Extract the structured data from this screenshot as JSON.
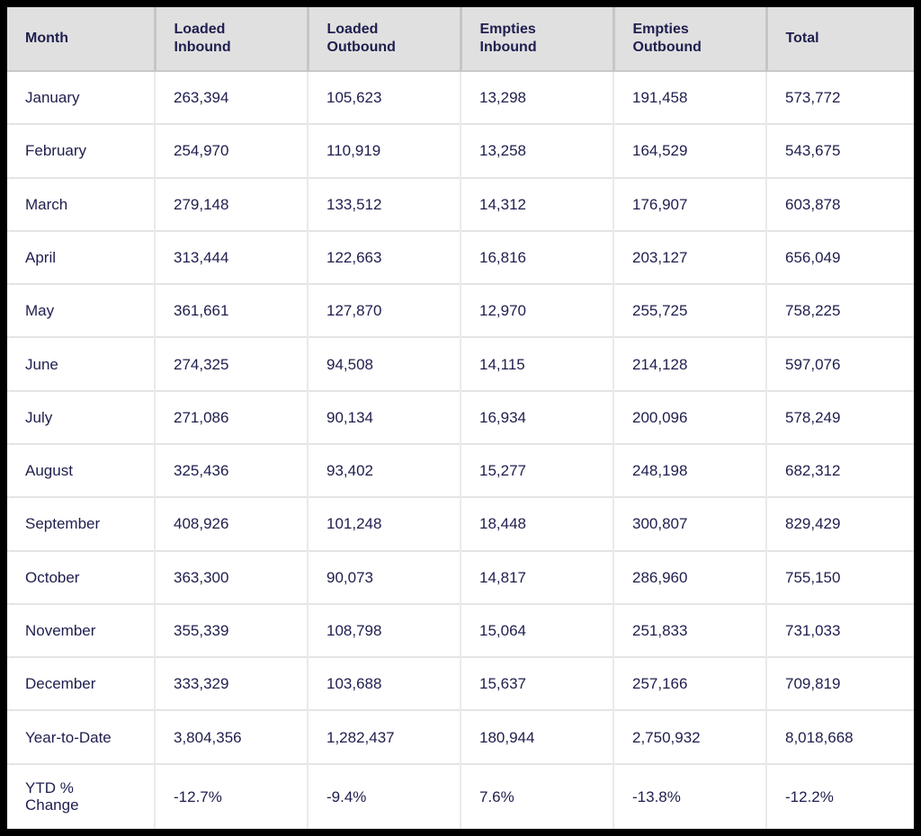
{
  "colors": {
    "frame": "#000000",
    "header_background": "#e0e0e0",
    "text_navy": "#1e1e4e",
    "body_grid": "#e4e4e4",
    "header_grid": "#c6c6c6",
    "cell_background": "#ffffff"
  },
  "chart_data": {
    "type": "table",
    "columns": [
      "Month",
      "Loaded Inbound",
      "Loaded Outbound",
      "Empties Inbound",
      "Empties Outbound",
      "Total"
    ],
    "rows": [
      [
        "January",
        "263,394",
        "105,623",
        "13,298",
        "191,458",
        "573,772"
      ],
      [
        "February",
        "254,970",
        "110,919",
        "13,258",
        "164,529",
        "543,675"
      ],
      [
        "March",
        "279,148",
        "133,512",
        "14,312",
        "176,907",
        "603,878"
      ],
      [
        "April",
        "313,444",
        "122,663",
        "16,816",
        "203,127",
        "656,049"
      ],
      [
        "May",
        "361,661",
        "127,870",
        "12,970",
        "255,725",
        "758,225"
      ],
      [
        "June",
        "274,325",
        "94,508",
        "14,115",
        "214,128",
        "597,076"
      ],
      [
        "July",
        "271,086",
        "90,134",
        "16,934",
        "200,096",
        "578,249"
      ],
      [
        "August",
        "325,436",
        "93,402",
        "15,277",
        "248,198",
        "682,312"
      ],
      [
        "September",
        "408,926",
        "101,248",
        "18,448",
        "300,807",
        "829,429"
      ],
      [
        "October",
        "363,300",
        "90,073",
        "14,817",
        "286,960",
        "755,150"
      ],
      [
        "November",
        "355,339",
        "108,798",
        "15,064",
        "251,833",
        "731,033"
      ],
      [
        "December",
        "333,329",
        "103,688",
        "15,637",
        "257,166",
        "709,819"
      ],
      [
        "Year-to-Date",
        "3,804,356",
        "1,282,437",
        "180,944",
        "2,750,932",
        "8,018,668"
      ],
      [
        "YTD % Change",
        "-12.7%",
        "-9.4%",
        "7.6%",
        "-13.8%",
        "-12.2%"
      ]
    ],
    "layout": {
      "header_position": "top",
      "grid": true,
      "value_alignment": "left"
    }
  }
}
